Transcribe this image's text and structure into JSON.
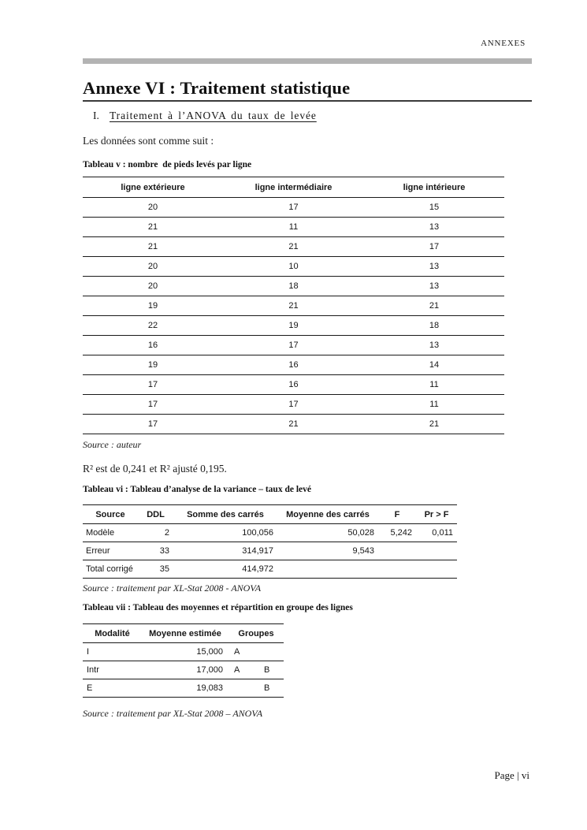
{
  "document": {
    "header_label": "ANNEXES",
    "title": "Annexe VI : Traitement statistique",
    "section": {
      "number": "I.",
      "title": "Traitement à l’ANOVA du taux de levée"
    },
    "intro": "Les données sont comme suit :",
    "r2_note": "R² est de 0,241 et R² ajusté 0,195.",
    "footer": "Page | vi"
  },
  "tables": {
    "v": {
      "caption": "Tableau v : nombre  de pieds levés par ligne",
      "columns": [
        "ligne extérieure",
        "ligne intermédiaire",
        "ligne intérieure"
      ],
      "rows": [
        [
          20,
          17,
          15
        ],
        [
          21,
          11,
          13
        ],
        [
          21,
          21,
          17
        ],
        [
          20,
          10,
          13
        ],
        [
          20,
          18,
          13
        ],
        [
          19,
          21,
          21
        ],
        [
          22,
          19,
          18
        ],
        [
          16,
          17,
          13
        ],
        [
          19,
          16,
          14
        ],
        [
          17,
          16,
          11
        ],
        [
          17,
          17,
          11
        ],
        [
          17,
          21,
          21
        ]
      ],
      "source": "Source : auteur"
    },
    "vi": {
      "caption": "Tableau vi : Tableau d’analyse de la variance – taux de levé",
      "columns": [
        "Source",
        "DDL",
        "Somme des carrés",
        "Moyenne des carrés",
        "F",
        "Pr > F"
      ],
      "rows": [
        [
          "Modèle",
          "2",
          "100,056",
          "50,028",
          "5,242",
          "0,011"
        ],
        [
          "Erreur",
          "33",
          "314,917",
          "9,543",
          "",
          ""
        ],
        [
          "Total corrigé",
          "35",
          "414,972",
          "",
          "",
          ""
        ]
      ],
      "source": "Source : traitement par XL-Stat 2008 - ANOVA"
    },
    "vii": {
      "caption": "Tableau vii : Tableau des moyennes et répartition en groupe des lignes",
      "columns": [
        "Modalité",
        "Moyenne estimée",
        "Groupes"
      ],
      "rows": [
        [
          "I",
          "15,000",
          "A",
          ""
        ],
        [
          "Intr",
          "17,000",
          "A",
          "B"
        ],
        [
          "E",
          "19,083",
          "",
          "B"
        ]
      ],
      "source": "Source : traitement par XL-Stat 2008 – ANOVA"
    }
  },
  "colors": {
    "divider_gray": "#b3b3b3",
    "text": "#1c1c1c",
    "table_border": "#1a1a1a"
  }
}
